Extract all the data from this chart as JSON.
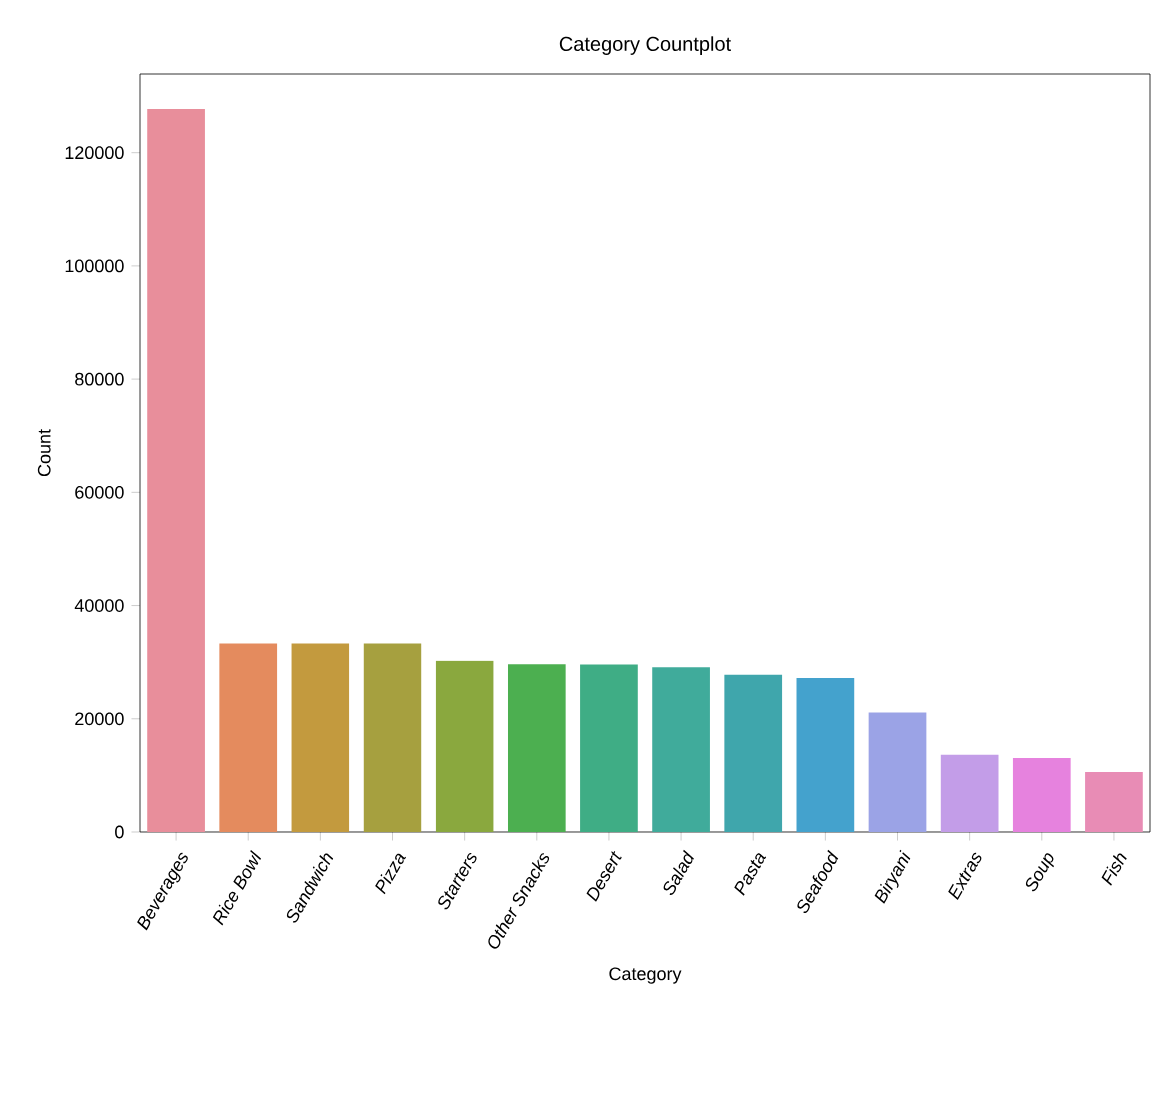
{
  "chart_data": {
    "type": "bar",
    "title": "Category Countplot",
    "xlabel": "Category",
    "ylabel": "Count",
    "categories": [
      "Beverages",
      "Rice Bowl",
      "Sandwich",
      "Pizza",
      "Starters",
      "Other Snacks",
      "Desert",
      "Salad",
      "Pasta",
      "Seafood",
      "Biryani",
      "Extras",
      "Soup",
      "Fish"
    ],
    "values": [
      127700,
      33300,
      33300,
      33300,
      30250,
      29650,
      29600,
      29100,
      27800,
      27200,
      21100,
      13650,
      13060,
      10600
    ],
    "colors": [
      "#e88e9b",
      "#e48b5e",
      "#c39a3e",
      "#a6a03f",
      "#8aa83e",
      "#4caf50",
      "#3fad85",
      "#40ab9b",
      "#3fa6ac",
      "#44a2cd",
      "#9ba3e6",
      "#c39de8",
      "#e682de",
      "#e88cb5"
    ],
    "ylim": [
      0,
      133900
    ],
    "yticks": [
      0,
      20000,
      40000,
      60000,
      80000,
      100000,
      120000
    ],
    "grid": false
  }
}
